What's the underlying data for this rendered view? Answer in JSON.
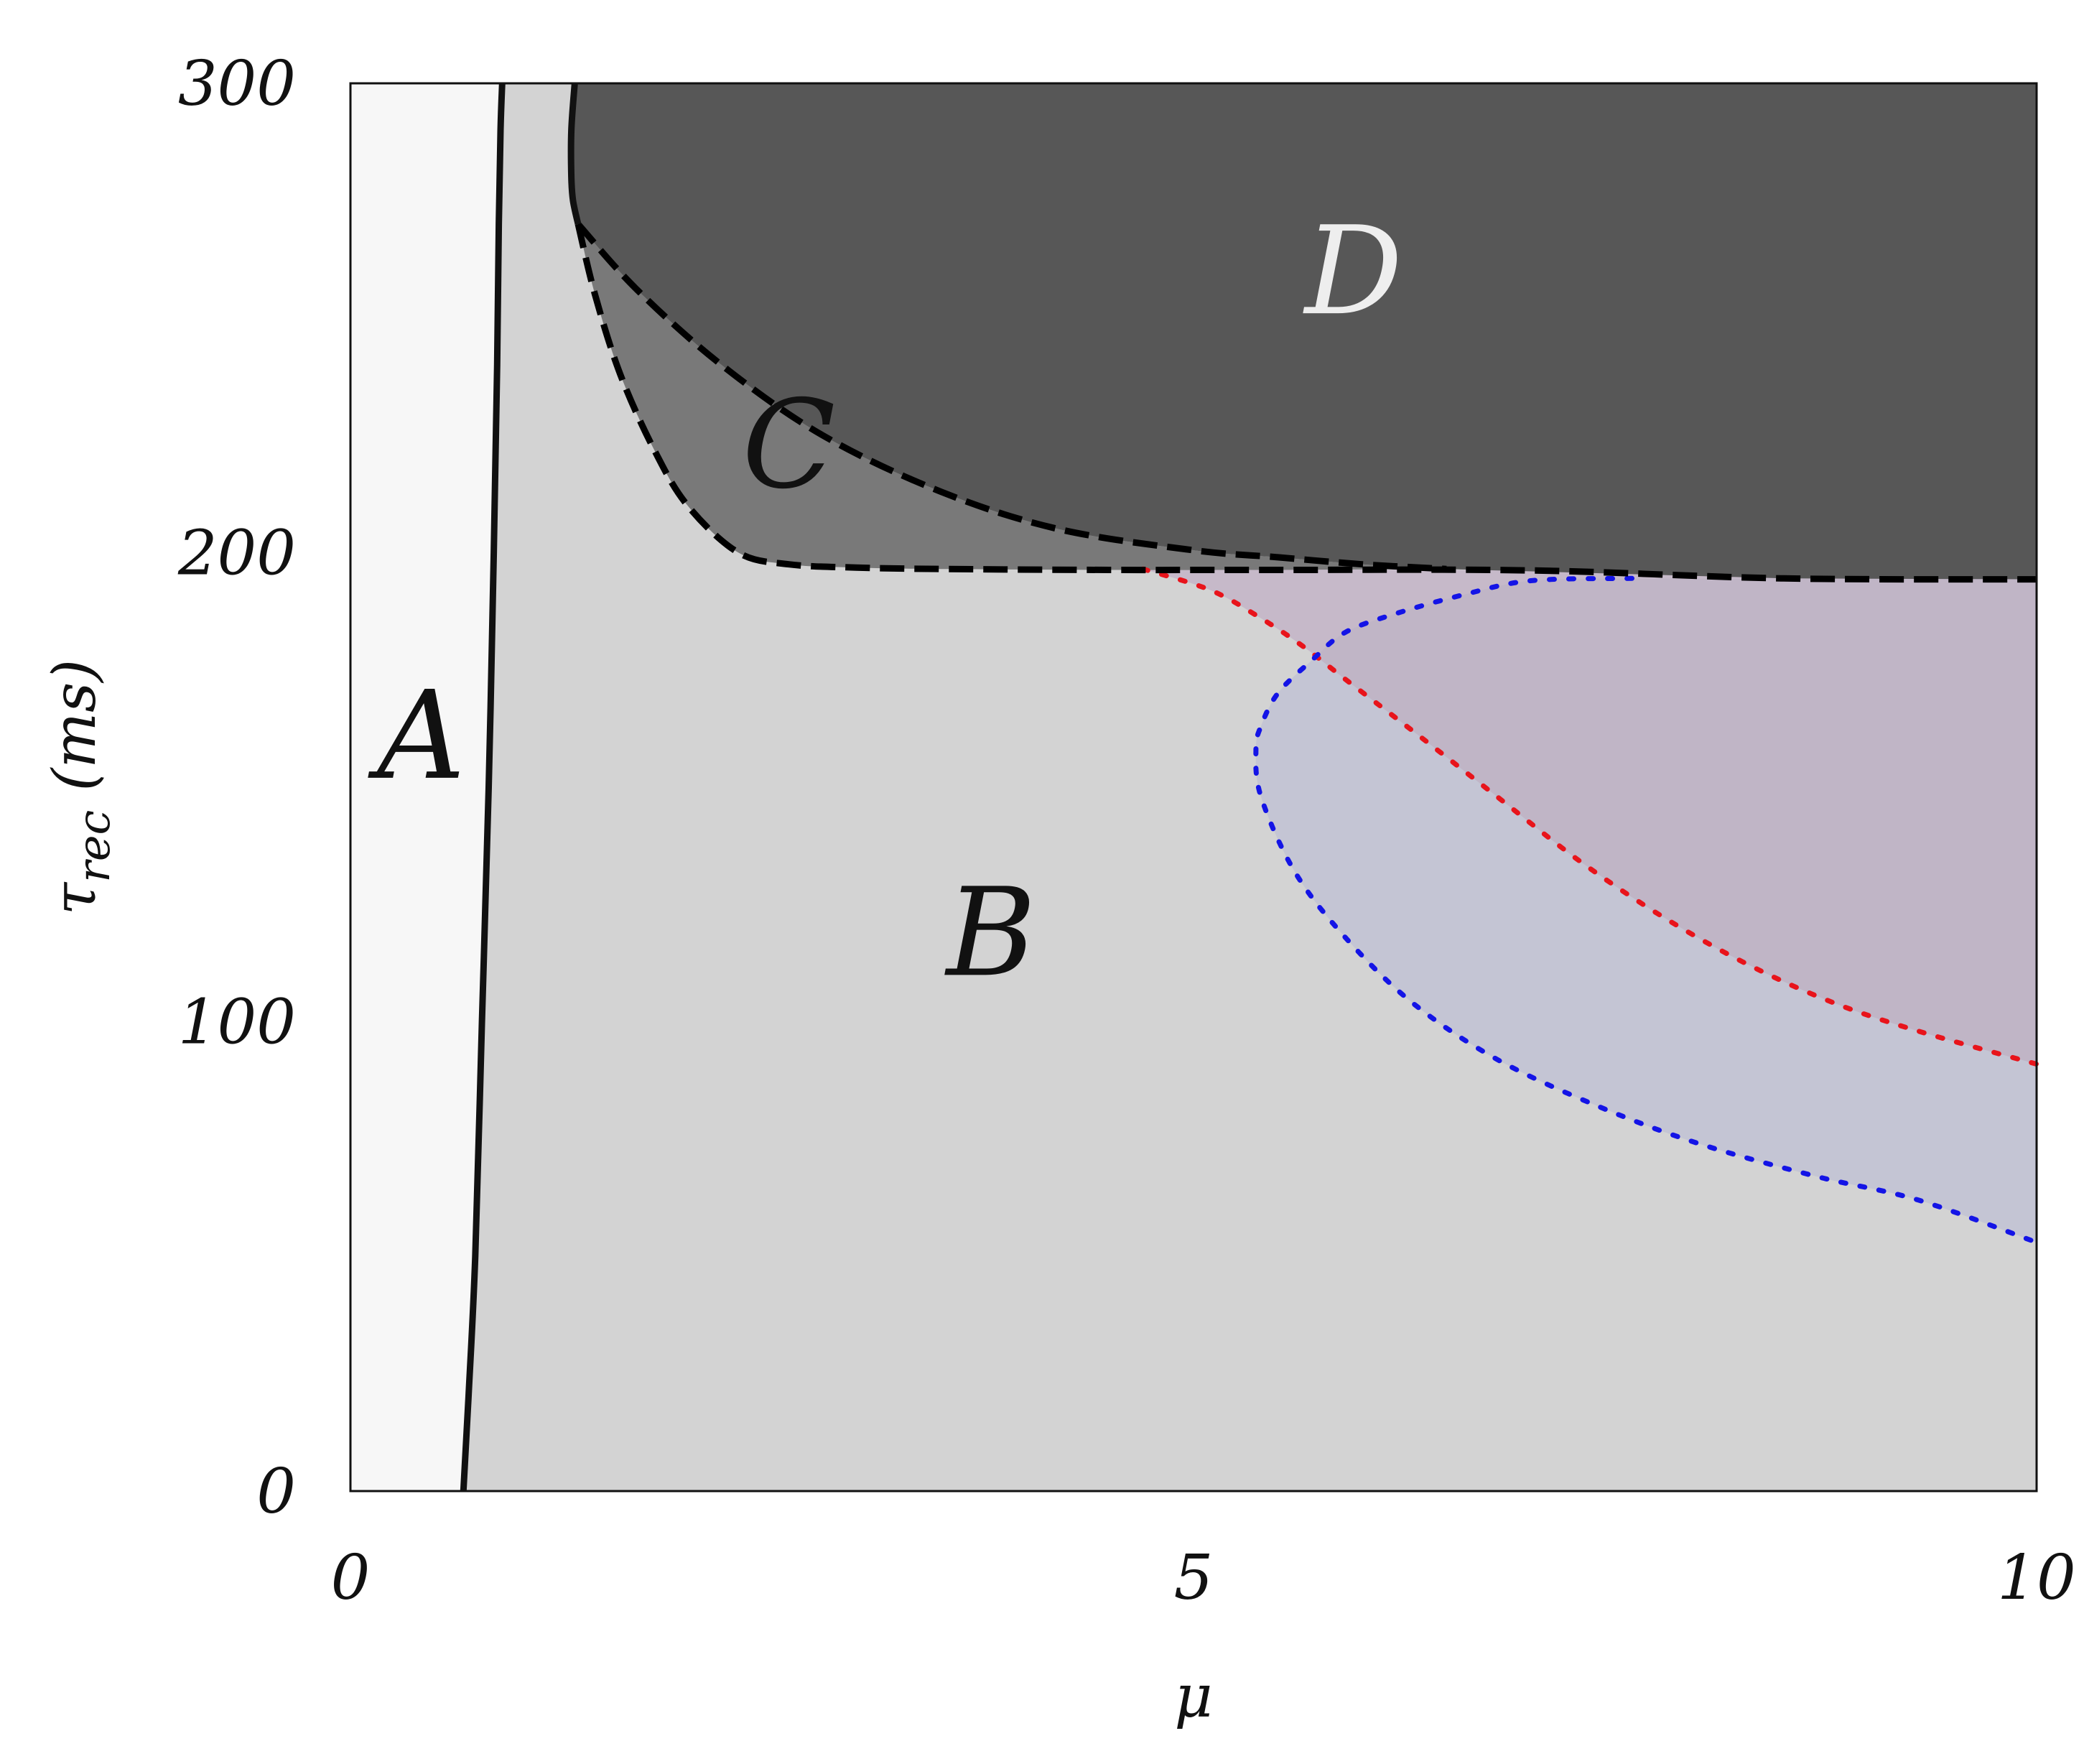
{
  "chart_data": {
    "type": "area",
    "title": "",
    "xlabel": "μ",
    "ylabel": "τrec (ms)",
    "ylabel_main": "τ",
    "ylabel_sub": "rec",
    "ylabel_unit": " (ms)",
    "xlim": [
      0,
      10
    ],
    "ylim": [
      0,
      300
    ],
    "xticks": [
      "0",
      "5",
      "10"
    ],
    "yticks": [
      "0",
      "100",
      "200",
      "300"
    ],
    "grid": false,
    "legend": "none",
    "colors": {
      "region_A": "#f7f7f7",
      "region_B": "#d3d3d3",
      "region_C": "#797979",
      "region_D": "#575757",
      "red_region": "#c6b9c9",
      "blue_region": "#c4c5d4",
      "overlap_region": "#c0b5c6",
      "red_boundary": "#e8141b",
      "blue_boundary": "#1414e6",
      "solid_boundary": "#111111",
      "dashed_boundary": "#000000"
    },
    "regions": [
      {
        "name": "A",
        "label_at": [
          0.42,
          152
        ],
        "label_color": "#111111"
      },
      {
        "name": "B",
        "label_at": [
          3.8,
          110
        ],
        "label_color": "#111111"
      },
      {
        "name": "C",
        "label_at": [
          2.6,
          214
        ],
        "label_color": "#111111"
      },
      {
        "name": "D",
        "label_at": [
          5.95,
          251
        ],
        "label_color": "#eeeeee"
      }
    ],
    "curves": {
      "A_B_boundary": {
        "style": "solid",
        "x": [
          0.67,
          0.7,
          0.74,
          0.78,
          0.82,
          0.85,
          0.87,
          0.88,
          0.89,
          0.9
        ],
        "y": [
          0,
          20,
          50,
          100,
          150,
          200,
          240,
          270,
          290,
          300
        ]
      },
      "D_upper_left": {
        "style": "solid",
        "x": [
          1.33,
          1.31,
          1.31,
          1.32,
          1.35
        ],
        "y": [
          300,
          290,
          280,
          275,
          270
        ]
      },
      "C_lower_boundary": {
        "style": "dashed",
        "x": [
          1.35,
          1.45,
          1.6,
          1.8,
          2.0,
          2.3,
          2.6,
          3.0,
          3.5,
          4.5,
          5.5,
          7.0,
          8.5,
          10.0
        ],
        "y": [
          270,
          255,
          238,
          222,
          210,
          200,
          197.5,
          196.8,
          196.5,
          196.3,
          196.3,
          196.2,
          194.5,
          194.3
        ]
      },
      "C_D_boundary": {
        "style": "dashed",
        "x": [
          1.35,
          1.7,
          2.2,
          2.8,
          3.5,
          4.2,
          5.0,
          5.5,
          6.0,
          6.5
        ],
        "y": [
          270,
          256,
          240,
          225,
          213,
          205,
          200.5,
          199,
          197.5,
          196.5
        ]
      },
      "red_boundary": {
        "style": "dotted",
        "x": [
          4.7,
          5.1,
          5.4,
          5.65,
          5.9,
          6.3,
          6.8,
          7.3,
          7.8,
          8.3,
          8.8,
          9.3,
          10.0
        ],
        "y": [
          196.5,
          192,
          186,
          180,
          173,
          162,
          148,
          134,
          122,
          112,
          104,
          98,
          91
        ]
      },
      "blue_boundary": {
        "style": "dotted",
        "x": [
          7.6,
          7.0,
          6.6,
          6.2,
          5.9,
          5.7,
          5.5,
          5.4,
          5.37,
          5.4,
          5.6,
          5.9,
          6.3,
          6.8,
          7.4,
          8.0,
          8.7,
          9.3,
          10.0
        ],
        "y": [
          194.5,
          194,
          191,
          187,
          183,
          177,
          170,
          163,
          158,
          148,
          132,
          118,
          104,
          92,
          82,
          74,
          67,
          62,
          53
        ]
      }
    }
  }
}
